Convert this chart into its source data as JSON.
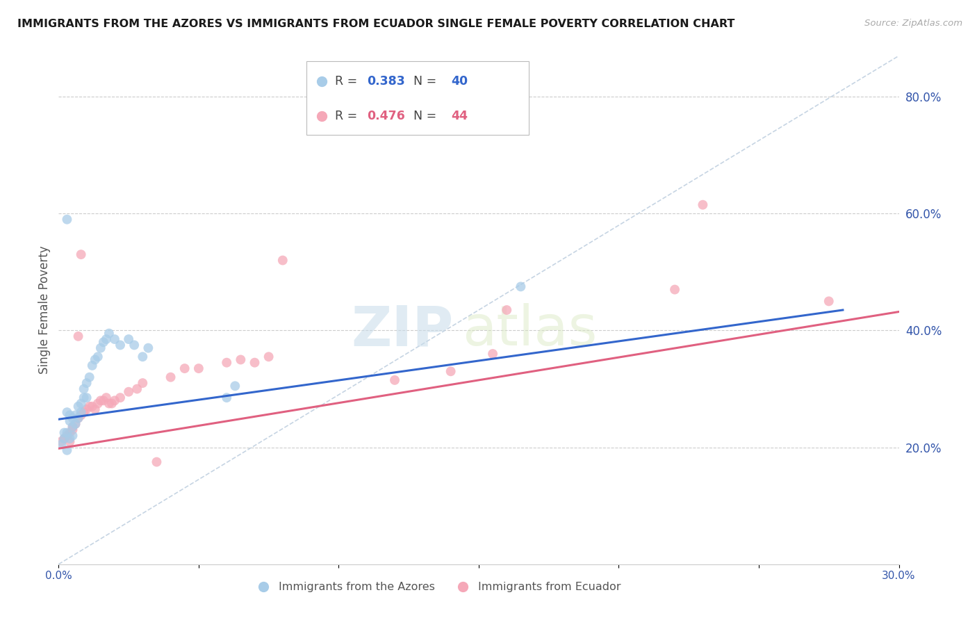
{
  "title": "IMMIGRANTS FROM THE AZORES VS IMMIGRANTS FROM ECUADOR SINGLE FEMALE POVERTY CORRELATION CHART",
  "source": "Source: ZipAtlas.com",
  "ylabel": "Single Female Poverty",
  "legend_label1": "Immigrants from the Azores",
  "legend_label2": "Immigrants from Ecuador",
  "R1": 0.383,
  "N1": 40,
  "R2": 0.476,
  "N2": 44,
  "color1": "#a8cce8",
  "color2": "#f5a8b8",
  "trend_color1": "#3366cc",
  "trend_color2": "#e06080",
  "diag_color": "#c0d0e0",
  "xlim": [
    0.0,
    0.3
  ],
  "ylim": [
    0.0,
    0.87
  ],
  "xticks": [
    0.0,
    0.05,
    0.1,
    0.15,
    0.2,
    0.25,
    0.3
  ],
  "xticklabels": [
    "0.0%",
    "",
    "",
    "",
    "",
    "",
    "30.0%"
  ],
  "yticks_right": [
    0.2,
    0.4,
    0.6,
    0.8
  ],
  "ytick_labels_right": [
    "20.0%",
    "40.0%",
    "60.0%",
    "80.0%"
  ],
  "blue_x": [
    0.001,
    0.002,
    0.002,
    0.003,
    0.003,
    0.003,
    0.004,
    0.004,
    0.004,
    0.005,
    0.005,
    0.005,
    0.006,
    0.006,
    0.007,
    0.007,
    0.008,
    0.008,
    0.009,
    0.009,
    0.01,
    0.01,
    0.011,
    0.012,
    0.013,
    0.014,
    0.015,
    0.016,
    0.017,
    0.018,
    0.02,
    0.022,
    0.025,
    0.027,
    0.03,
    0.032,
    0.06,
    0.063,
    0.003,
    0.165
  ],
  "blue_y": [
    0.205,
    0.215,
    0.225,
    0.195,
    0.225,
    0.26,
    0.215,
    0.245,
    0.255,
    0.22,
    0.235,
    0.25,
    0.24,
    0.255,
    0.25,
    0.27,
    0.26,
    0.275,
    0.285,
    0.3,
    0.285,
    0.31,
    0.32,
    0.34,
    0.35,
    0.355,
    0.37,
    0.38,
    0.385,
    0.395,
    0.385,
    0.375,
    0.385,
    0.375,
    0.355,
    0.37,
    0.285,
    0.305,
    0.59,
    0.475
  ],
  "pink_x": [
    0.001,
    0.002,
    0.003,
    0.004,
    0.004,
    0.005,
    0.005,
    0.006,
    0.007,
    0.008,
    0.009,
    0.01,
    0.011,
    0.012,
    0.013,
    0.014,
    0.015,
    0.016,
    0.017,
    0.018,
    0.019,
    0.02,
    0.022,
    0.025,
    0.028,
    0.03,
    0.035,
    0.04,
    0.045,
    0.05,
    0.06,
    0.065,
    0.07,
    0.075,
    0.08,
    0.12,
    0.14,
    0.155,
    0.16,
    0.22,
    0.23,
    0.007,
    0.008,
    0.275
  ],
  "pink_y": [
    0.21,
    0.215,
    0.22,
    0.21,
    0.225,
    0.23,
    0.235,
    0.24,
    0.25,
    0.255,
    0.26,
    0.265,
    0.27,
    0.27,
    0.265,
    0.275,
    0.28,
    0.28,
    0.285,
    0.275,
    0.275,
    0.28,
    0.285,
    0.295,
    0.3,
    0.31,
    0.175,
    0.32,
    0.335,
    0.335,
    0.345,
    0.35,
    0.345,
    0.355,
    0.52,
    0.315,
    0.33,
    0.36,
    0.435,
    0.47,
    0.615,
    0.39,
    0.53,
    0.45
  ],
  "blue_trend_x": [
    0.0,
    0.28
  ],
  "blue_trend_y": [
    0.248,
    0.435
  ],
  "pink_trend_x": [
    0.0,
    0.3
  ],
  "pink_trend_y": [
    0.198,
    0.432
  ],
  "watermark_zip": "ZIP",
  "watermark_atlas": "atlas",
  "background_color": "#ffffff",
  "grid_color": "#cccccc",
  "title_color": "#1a1a1a",
  "axis_label_color": "#555555",
  "tick_color": "#3355aa",
  "source_color": "#aaaaaa"
}
